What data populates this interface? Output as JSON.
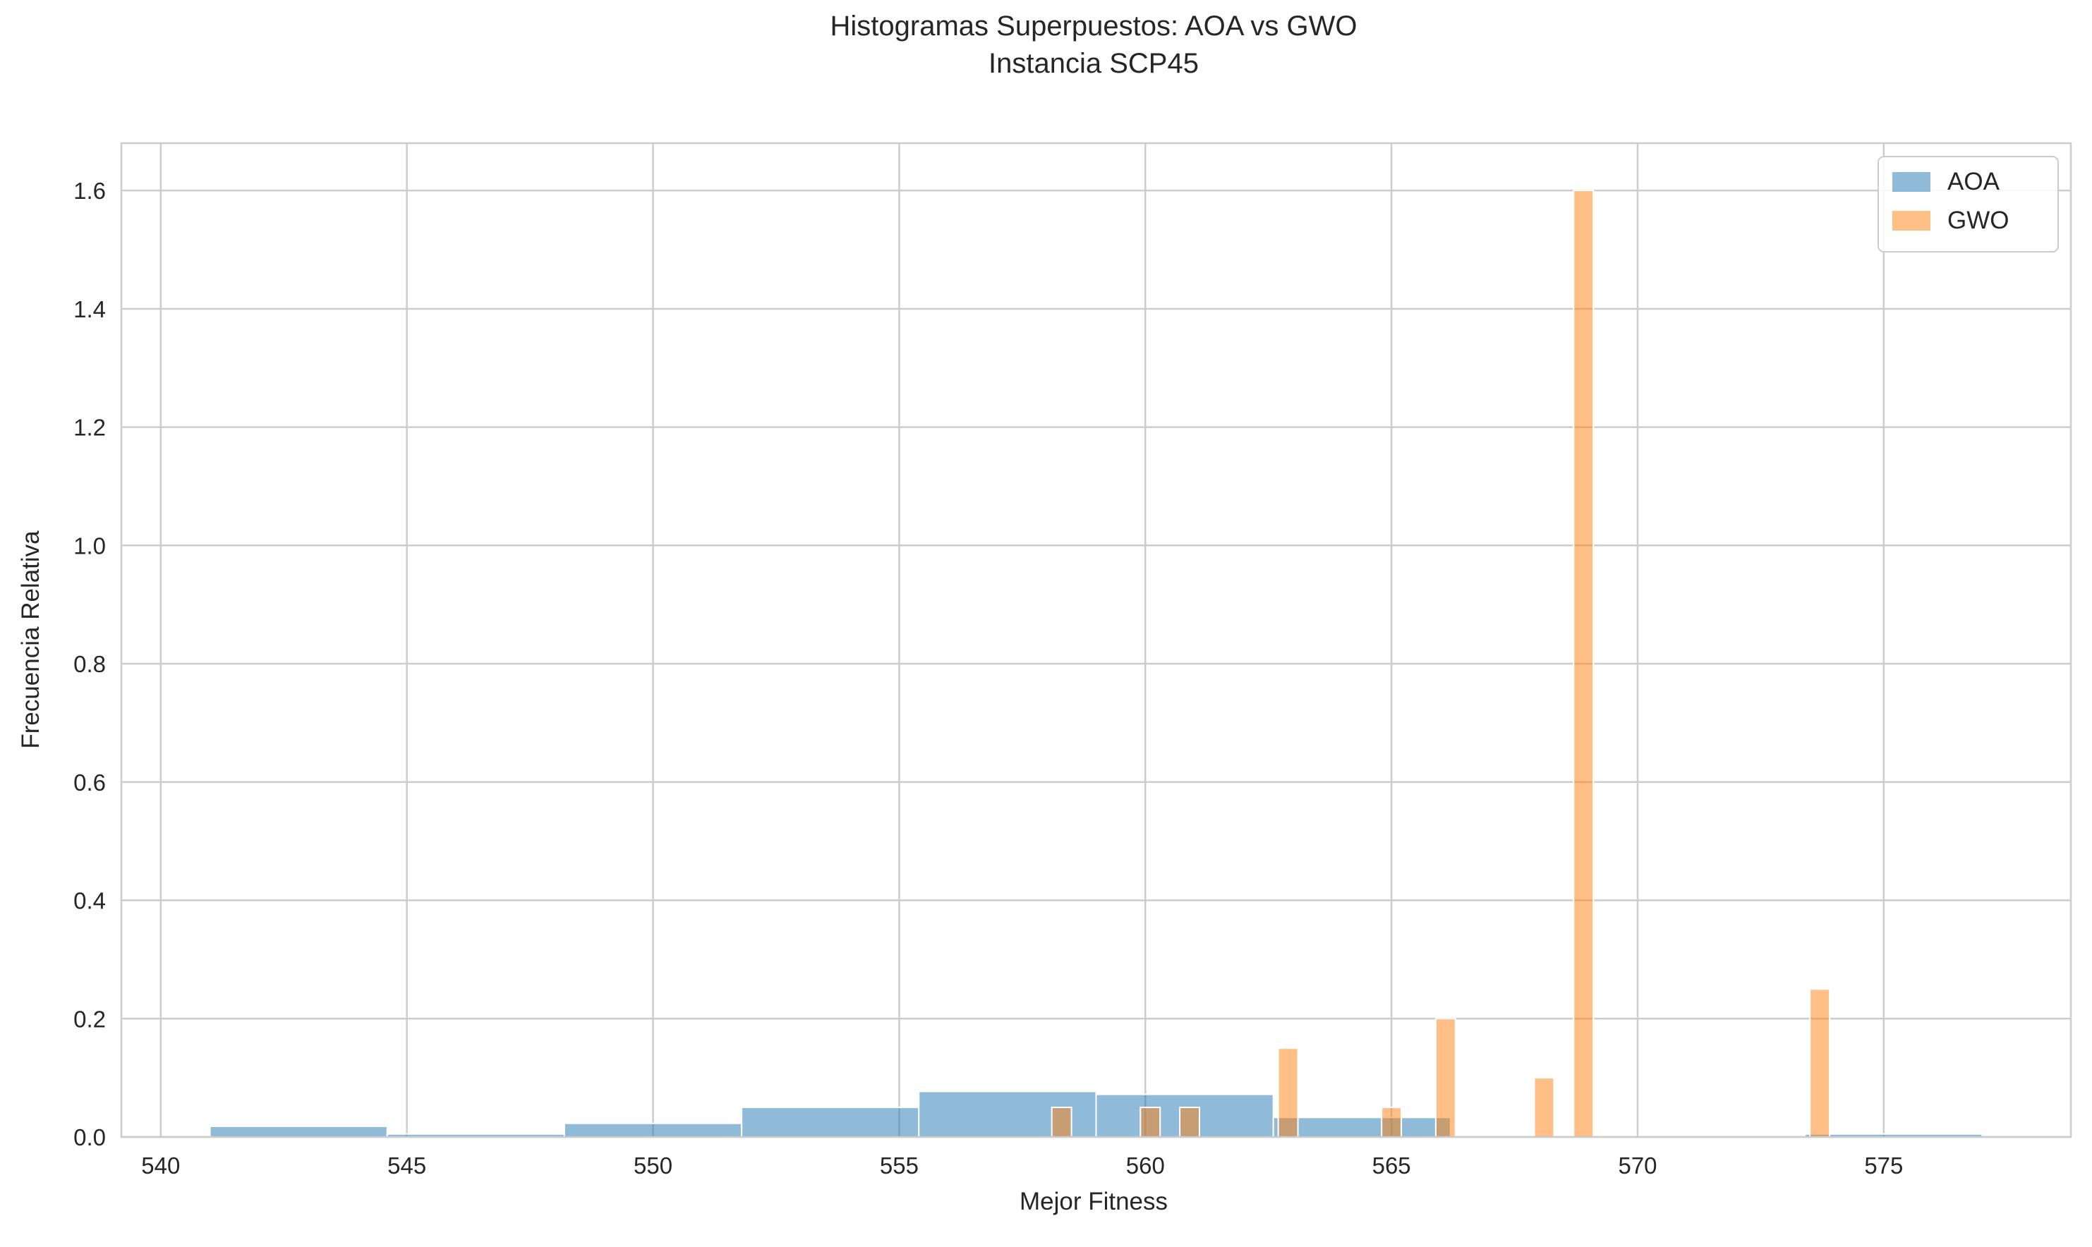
{
  "chart_data": {
    "type": "bar",
    "title": "Histogramas Superpuestos: AOA vs GWO",
    "subtitle": "Instancia SCP45",
    "xlabel": "Mejor Fitness",
    "ylabel": "Frecuencia Relativa",
    "xlim": [
      539.2,
      578.8
    ],
    "ylim": [
      0,
      1.68
    ],
    "xticks": [
      540,
      545,
      550,
      555,
      560,
      565,
      570,
      575
    ],
    "yticks": [
      0.0,
      0.2,
      0.4,
      0.6,
      0.8,
      1.0,
      1.2,
      1.4,
      1.6
    ],
    "ytick_labels": [
      "0.0",
      "0.2",
      "0.4",
      "0.6",
      "0.8",
      "1.0",
      "1.2",
      "1.4",
      "1.6"
    ],
    "grid": true,
    "legend_position": "top-right",
    "series": [
      {
        "name": "AOA",
        "color": "#1f77b4",
        "opacity": 0.5,
        "bins": [
          {
            "x0": 541.0,
            "x1": 544.6,
            "y": 0.018
          },
          {
            "x0": 544.6,
            "x1": 548.2,
            "y": 0.005
          },
          {
            "x0": 548.2,
            "x1": 551.8,
            "y": 0.023
          },
          {
            "x0": 551.8,
            "x1": 555.4,
            "y": 0.05
          },
          {
            "x0": 555.4,
            "x1": 559.0,
            "y": 0.077
          },
          {
            "x0": 559.0,
            "x1": 562.6,
            "y": 0.072
          },
          {
            "x0": 562.6,
            "x1": 566.2,
            "y": 0.033
          },
          {
            "x0": 566.2,
            "x1": 569.8,
            "y": 0.0
          },
          {
            "x0": 569.8,
            "x1": 573.4,
            "y": 0.0
          },
          {
            "x0": 573.4,
            "x1": 577.0,
            "y": 0.005
          }
        ]
      },
      {
        "name": "GWO",
        "color": "#ff7f0e",
        "opacity": 0.5,
        "bins": [
          {
            "x0": 558.1,
            "x1": 558.5,
            "y": 0.05
          },
          {
            "x0": 559.9,
            "x1": 560.3,
            "y": 0.05
          },
          {
            "x0": 560.7,
            "x1": 561.1,
            "y": 0.05
          },
          {
            "x0": 562.7,
            "x1": 563.1,
            "y": 0.15
          },
          {
            "x0": 564.8,
            "x1": 565.2,
            "y": 0.05
          },
          {
            "x0": 565.9,
            "x1": 566.3,
            "y": 0.2
          },
          {
            "x0": 567.9,
            "x1": 568.3,
            "y": 0.1
          },
          {
            "x0": 568.7,
            "x1": 569.1,
            "y": 1.6
          },
          {
            "x0": 573.5,
            "x1": 573.9,
            "y": 0.25
          }
        ]
      }
    ]
  }
}
